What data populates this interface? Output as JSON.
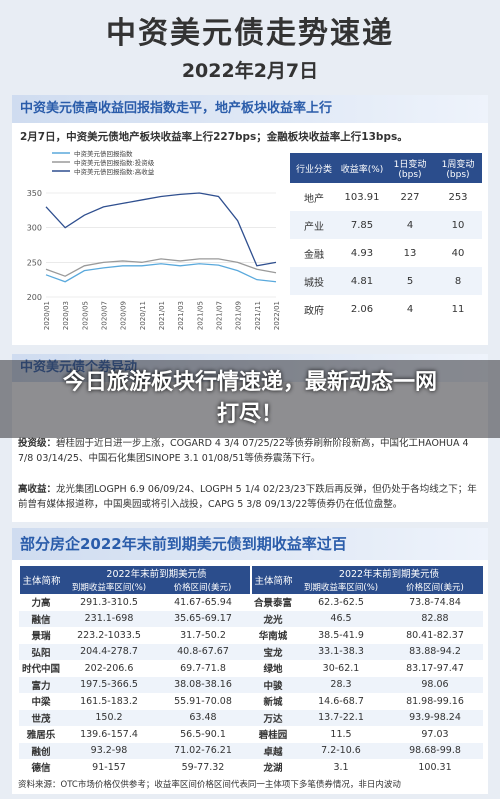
{
  "header": {
    "title": "中资美元债走势速递",
    "date": "2022年2月7日"
  },
  "section1": {
    "heading": "中资美元债高收益回报指数走平，地产板块收益率上行",
    "summary": "2月7日，中资美元债地产板块收益率上行227bps；金融板块收益率上行13bps。",
    "chart": {
      "type": "line",
      "categories": [
        "2020/01",
        "2020/03",
        "2020/05",
        "2020/07",
        "2020/09",
        "2020/11",
        "2021/01",
        "2021/03",
        "2021/05",
        "2021/07",
        "2021/09",
        "2021/11",
        "2022/01"
      ],
      "ylim": [
        200,
        350
      ],
      "yticks": [
        350,
        300,
        250,
        200
      ],
      "series": [
        {
          "name": "中资美元债回报指数",
          "color": "#5aa9dc",
          "values": [
            232,
            222,
            238,
            242,
            245,
            245,
            248,
            245,
            248,
            246,
            238,
            225,
            222
          ]
        },
        {
          "name": "中资美元债回报指数:投资级",
          "color": "#9a9a9a",
          "values": [
            240,
            230,
            245,
            250,
            252,
            250,
            255,
            252,
            255,
            255,
            250,
            240,
            235
          ]
        },
        {
          "name": "中资美元债回报指数:高收益",
          "color": "#2f4f8f",
          "values": [
            330,
            300,
            318,
            330,
            335,
            340,
            345,
            348,
            350,
            345,
            310,
            245,
            250
          ]
        }
      ]
    },
    "table": {
      "columns": [
        "行业分类",
        "收益率(%)",
        "1日变动(bps)",
        "1周变动(bps)"
      ],
      "rows": [
        [
          "地产",
          "103.91",
          "227",
          "253"
        ],
        [
          "产业",
          "7.85",
          "4",
          "10"
        ],
        [
          "金融",
          "4.93",
          "13",
          "40"
        ],
        [
          "城投",
          "4.81",
          "5",
          "8"
        ],
        [
          "政府",
          "2.06",
          "4",
          "11"
        ]
      ]
    }
  },
  "overlay": {
    "text": "今日旅游板块行情速递，最新动态一网打尽！"
  },
  "section2": {
    "heading": "中资美元债个券异动",
    "paragraphs": [
      {
        "label": "投资级：",
        "text": "碧桂园于近日进一步上涨，COGARD 4 3/4 07/25/22等债券刷新阶段新高，中国化工HAOHUA 4 7/8 03/14/25、中国石化集团SINOPE 3.1 01/08/51等债券震荡下行。"
      },
      {
        "label": "高收益：",
        "text": "龙光集团LOGPH 6.9 06/09/24、LOGPH 5 1/4 02/23/23下跌后再反弹，但仍处于各均线之下；年前曾有媒体报道称，中国奥园或将引入战投，CAPG 5 3/8 09/13/22等债券仍在低位盘整。"
      }
    ]
  },
  "section3": {
    "heading": "部分房企2022年末前到期美元债到期收益率过百",
    "table": {
      "entity": "主体简称",
      "group": "2022年末前到期美元债",
      "columns": [
        "到期收益率区间(%)",
        "价格区间(美元)"
      ],
      "rows": [
        [
          [
            "力高",
            "291.3-310.5",
            "41.67-65.94"
          ],
          [
            "合景泰富",
            "62.3-62.5",
            "73.8-74.84"
          ]
        ],
        [
          [
            "融信",
            "231.1-698",
            "35.65-69.17"
          ],
          [
            "龙光",
            "46.5",
            "82.88"
          ]
        ],
        [
          [
            "景瑞",
            "223.2-1033.5",
            "31.7-50.2"
          ],
          [
            "华南城",
            "38.5-41.9",
            "80.41-82.37"
          ]
        ],
        [
          [
            "弘阳",
            "204.4-278.7",
            "40.8-67.67"
          ],
          [
            "宝龙",
            "33.1-38.3",
            "83.88-94.2"
          ]
        ],
        [
          [
            "时代中国",
            "202-206.6",
            "69.7-71.8"
          ],
          [
            "绿地",
            "30-62.1",
            "83.17-97.47"
          ]
        ],
        [
          [
            "富力",
            "197.5-366.5",
            "38.08-38.16"
          ],
          [
            "中骏",
            "28.3",
            "98.06"
          ]
        ],
        [
          [
            "中梁",
            "161.5-183.2",
            "55.91-70.08"
          ],
          [
            "新城",
            "14.6-68.7",
            "81.98-99.16"
          ]
        ],
        [
          [
            "世茂",
            "150.2",
            "63.48"
          ],
          [
            "万达",
            "13.7-22.1",
            "93.9-98.24"
          ]
        ],
        [
          [
            "雅居乐",
            "139.6-157.4",
            "56.5-90.1"
          ],
          [
            "碧桂园",
            "11.5",
            "97.03"
          ]
        ],
        [
          [
            "融创",
            "93.2-98",
            "71.02-76.21"
          ],
          [
            "卓越",
            "7.2-10.6",
            "98.68-99.8"
          ]
        ],
        [
          [
            "德信",
            "91-157",
            "59-77.32"
          ],
          [
            "龙湖",
            "3.1",
            "100.31"
          ]
        ]
      ]
    },
    "source": "资料来源：OTC市场价格仅供参考；收益率区间价格区间代表同一主体项下多笔债券情况，非日内波动"
  }
}
